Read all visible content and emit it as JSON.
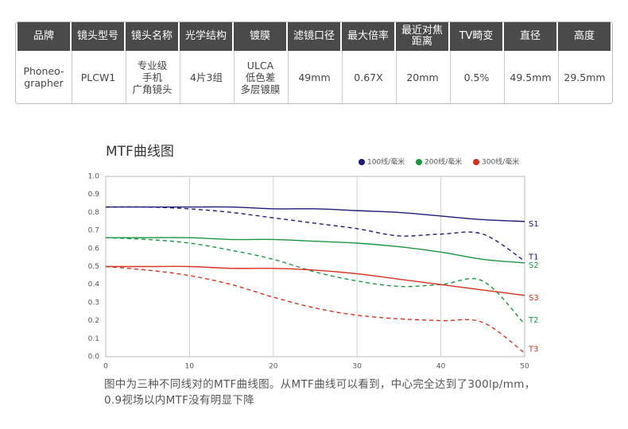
{
  "table": {
    "header": [
      "品牌",
      "镜头型号",
      "镜头名称",
      "光学结构",
      "镀膜",
      "滤镜口径",
      "最大倍率",
      "最近对焦\n距离",
      "TV畸变",
      "直径",
      "高度"
    ],
    "rows": [
      [
        "Phoneo-\ngrapher",
        "PLCW1",
        "专业级\n手机\n广角镜头",
        "4片3组",
        "ULCA\n低色差\n多层镀膜",
        "49mm",
        "0.67X",
        "20mm",
        "0.5%",
        "49.5mm",
        "29.5mm"
      ]
    ]
  },
  "chart_data": {
    "type": "line",
    "title": "MTF曲线图",
    "legend": [
      {
        "name": "100线/毫米",
        "color": "#1e1a78"
      },
      {
        "name": "200线/毫米",
        "color": "#1a9641"
      },
      {
        "name": "300线/毫米",
        "color": "#d7301f"
      }
    ],
    "x": [
      0,
      5,
      10,
      15,
      20,
      25,
      30,
      35,
      40,
      45,
      50
    ],
    "series": [
      {
        "name": "S1",
        "color": "#1e1a78",
        "dashed": false,
        "values": [
          0.83,
          0.83,
          0.83,
          0.83,
          0.82,
          0.82,
          0.81,
          0.8,
          0.78,
          0.76,
          0.75
        ]
      },
      {
        "name": "T1",
        "color": "#1e1a78",
        "dashed": true,
        "values": [
          0.83,
          0.83,
          0.82,
          0.8,
          0.77,
          0.74,
          0.71,
          0.67,
          0.68,
          0.68,
          0.53
        ]
      },
      {
        "name": "S2",
        "color": "#1a9641",
        "dashed": false,
        "values": [
          0.66,
          0.66,
          0.66,
          0.65,
          0.65,
          0.64,
          0.63,
          0.61,
          0.58,
          0.54,
          0.52
        ]
      },
      {
        "name": "T2",
        "color": "#1a9641",
        "dashed": true,
        "values": [
          0.66,
          0.65,
          0.63,
          0.59,
          0.54,
          0.47,
          0.42,
          0.39,
          0.4,
          0.42,
          0.18
        ]
      },
      {
        "name": "S3",
        "color": "#d7301f",
        "dashed": false,
        "values": [
          0.5,
          0.5,
          0.5,
          0.49,
          0.49,
          0.48,
          0.46,
          0.43,
          0.4,
          0.37,
          0.34
        ]
      },
      {
        "name": "T3",
        "color": "#d7301f",
        "dashed": true,
        "values": [
          0.5,
          0.48,
          0.45,
          0.4,
          0.33,
          0.27,
          0.23,
          0.21,
          0.2,
          0.19,
          0.02
        ]
      }
    ],
    "xlim": [
      0,
      50
    ],
    "xticks": [
      0,
      10,
      20,
      30,
      40,
      50
    ],
    "ylim": [
      0,
      1
    ],
    "yticks": [
      {
        "value": 0,
        "label": "0.0"
      },
      0.1,
      0.2,
      0.3,
      0.4,
      0.5,
      0.6,
      0.7,
      0.8,
      0.9,
      {
        "value": 1,
        "label": "1.0"
      }
    ],
    "grid": "x"
  },
  "caption": "图中为三种不同线对的MTF曲线图。从MTF曲线可以看到，中心完全达到了300lp/mm，0.9视场以内MTF没有明显下降"
}
